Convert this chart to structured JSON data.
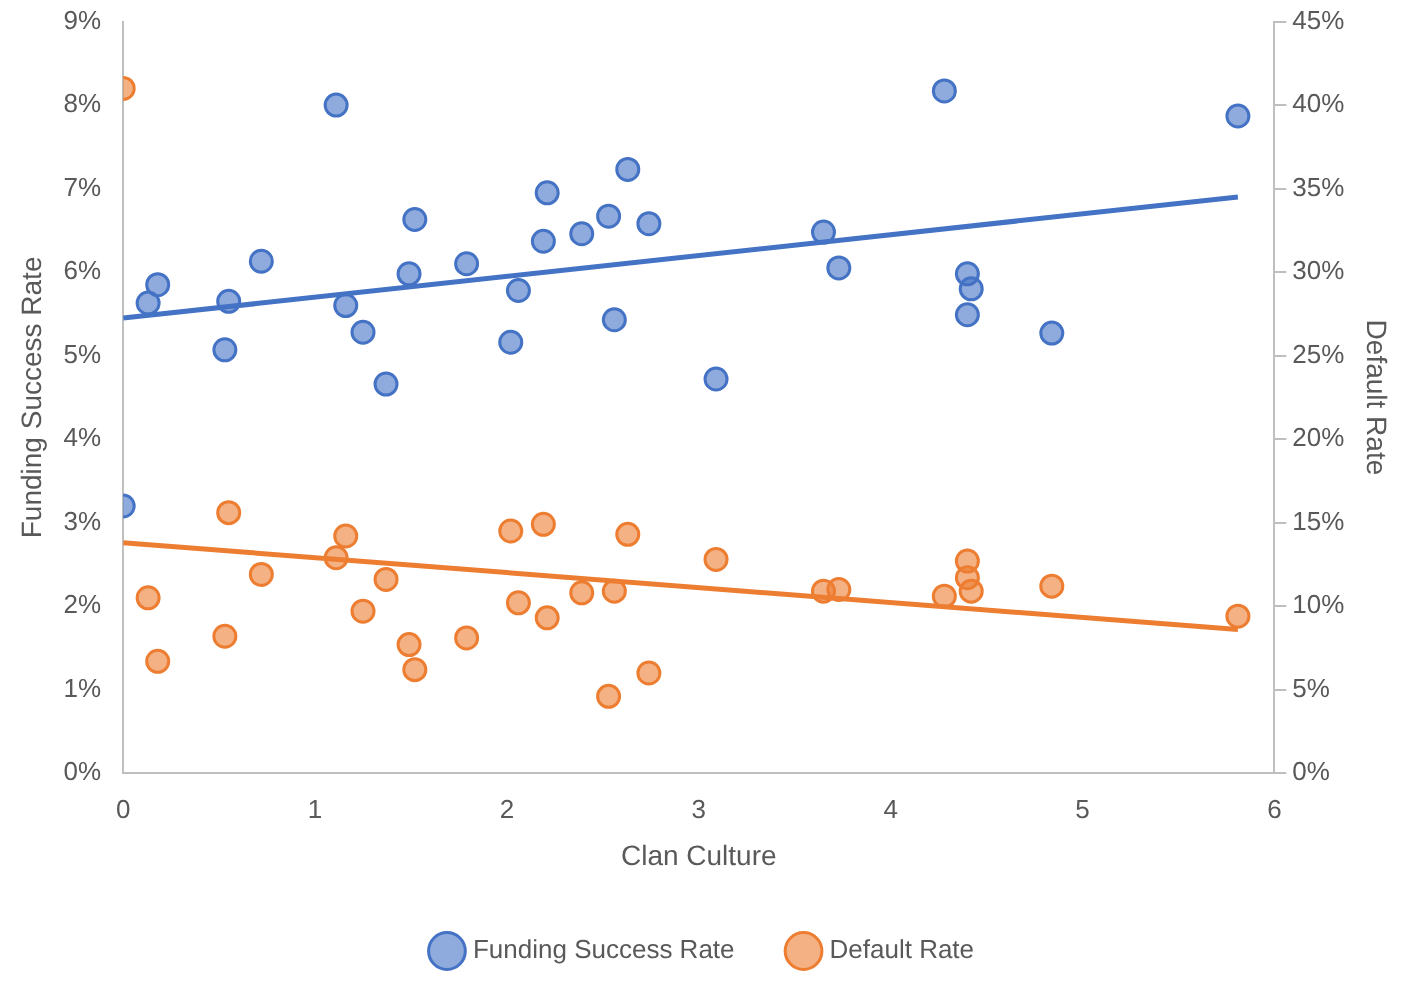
{
  "chart_data": {
    "type": "scatter",
    "xlabel": "Clan Culture",
    "ylabel": "Funding Success Rate",
    "y2label": "Default Rate",
    "xlim": [
      0,
      6
    ],
    "xticks": [
      0,
      1,
      2,
      3,
      4,
      5,
      6
    ],
    "ylim": [
      0,
      9
    ],
    "yticks": [
      {
        "value": 0,
        "label": "0%"
      },
      {
        "value": 1,
        "label": "1%"
      },
      {
        "value": 2,
        "label": "2%"
      },
      {
        "value": 3,
        "label": "3%"
      },
      {
        "value": 4,
        "label": "4%"
      },
      {
        "value": 5,
        "label": "5%"
      },
      {
        "value": 6,
        "label": "6%"
      },
      {
        "value": 7,
        "label": "7%"
      },
      {
        "value": 8,
        "label": "8%"
      },
      {
        "value": 9,
        "label": "9%"
      }
    ],
    "y2lim": [
      0,
      45
    ],
    "y2ticks": [
      {
        "value": 0,
        "label": "0%"
      },
      {
        "value": 5,
        "label": "5%"
      },
      {
        "value": 10,
        "label": "10%"
      },
      {
        "value": 15,
        "label": "15%"
      },
      {
        "value": 20,
        "label": "20%"
      },
      {
        "value": 25,
        "label": "25%"
      },
      {
        "value": 30,
        "label": "30%"
      },
      {
        "value": 35,
        "label": "35%"
      },
      {
        "value": 40,
        "label": "40%"
      },
      {
        "value": 45,
        "label": "45%"
      }
    ],
    "grid": false,
    "legend": "bottom",
    "marker": "circle",
    "series": [
      {
        "name": "Funding Success Rate",
        "color": "#4472c4",
        "x": [
          0,
          0.13,
          0.18,
          0.53,
          0.55,
          0.72,
          1.11,
          1.16,
          1.25,
          1.37,
          1.49,
          1.52,
          1.79,
          2.02,
          2.06,
          2.19,
          2.21,
          2.39,
          2.53,
          2.56,
          2.63,
          2.74,
          3.09,
          3.65,
          3.73,
          4.28,
          4.4,
          4.42,
          4.4,
          4.84,
          5.81
        ],
        "values": [
          3.2,
          5.63,
          5.85,
          5.07,
          5.65,
          6.13,
          8.0,
          5.6,
          5.28,
          4.66,
          5.98,
          6.63,
          6.1,
          5.16,
          5.78,
          6.37,
          6.95,
          6.46,
          6.67,
          5.43,
          7.23,
          6.58,
          4.72,
          6.48,
          6.05,
          8.17,
          5.98,
          5.8,
          5.49,
          5.27,
          7.87
        ]
      },
      {
        "name": "Default Rate",
        "color": "#ed7d31",
        "axis": "y2",
        "x": [
          0,
          0.13,
          0.18,
          0.53,
          0.55,
          0.72,
          1.11,
          1.16,
          1.25,
          1.37,
          1.49,
          1.52,
          1.79,
          2.02,
          2.06,
          2.19,
          2.21,
          2.39,
          2.53,
          2.56,
          2.63,
          2.74,
          3.09,
          3.65,
          3.73,
          4.28,
          4.4,
          4.4,
          4.42,
          4.84,
          5.81
        ],
        "values": [
          41,
          10.5,
          6.7,
          8.2,
          15.6,
          11.9,
          12.9,
          14.2,
          9.7,
          11.6,
          7.7,
          6.2,
          8.1,
          14.5,
          10.2,
          14.9,
          9.3,
          10.8,
          4.6,
          10.9,
          14.3,
          6.0,
          12.8,
          10.9,
          11.0,
          10.6,
          12.7,
          11.7,
          10.9,
          11.2,
          9.4
        ]
      },
      {
        "type": "line",
        "color": "#4472c4",
        "marker": "none",
        "x": [
          0,
          5.81
        ],
        "values": [
          5.45,
          6.9
        ]
      },
      {
        "type": "line",
        "color": "#ed7d31",
        "marker": "none",
        "axis": "y2",
        "x": [
          0,
          5.81
        ],
        "values": [
          13.8,
          8.6
        ]
      }
    ]
  }
}
